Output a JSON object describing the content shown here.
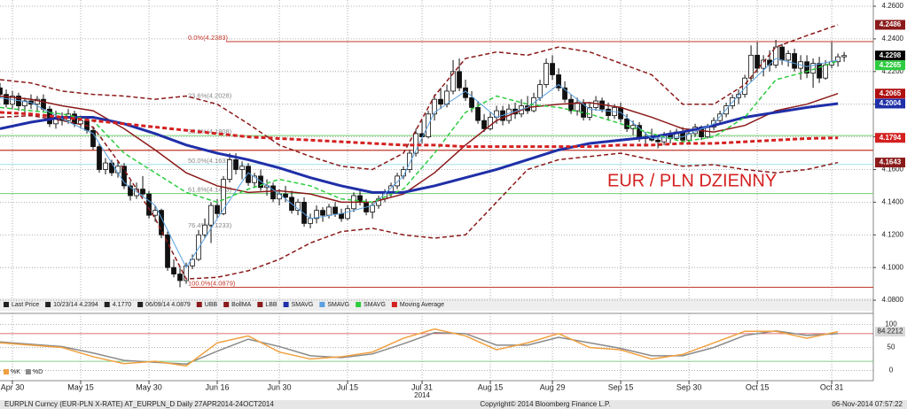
{
  "chart_data": {
    "type": "candlestick",
    "annotation": "EUR / PLN DZIENNY",
    "xlim": [
      0,
      140.7
    ],
    "xticks": [
      {
        "value": 2,
        "label": "Apr 30"
      },
      {
        "value": 13,
        "label": "May 15"
      },
      {
        "value": 24,
        "label": "May 30"
      },
      {
        "value": 35,
        "label": "Jun 16"
      },
      {
        "value": 45,
        "label": "Jun 30"
      },
      {
        "value": 56,
        "label": "Jul 15"
      },
      {
        "value": 68,
        "label": "Jul 31"
      },
      {
        "value": 79,
        "label": "Aug 15"
      },
      {
        "value": 89,
        "label": "Aug 29"
      },
      {
        "value": 100,
        "label": "Sep 15"
      },
      {
        "value": 111,
        "label": "Sep 30"
      },
      {
        "value": 122,
        "label": "Oct 15"
      },
      {
        "value": 134,
        "label": "Oct 31"
      }
    ],
    "year_label": "2014",
    "ylim": [
      4.0795,
      4.2638
    ],
    "yticks": [
      {
        "value": 4.26,
        "label": "4.2600"
      },
      {
        "value": 4.24,
        "label": "4.2400"
      },
      {
        "value": 4.22,
        "label": "4.2200"
      },
      {
        "value": 4.2,
        "label": "4.2000"
      },
      {
        "value": 4.18,
        "label": "4.1800"
      },
      {
        "value": 4.16,
        "label": "4.1600"
      },
      {
        "value": 4.14,
        "label": "4.1400"
      },
      {
        "value": 4.12,
        "label": "4.1200"
      },
      {
        "value": 4.1,
        "label": "4.1000"
      },
      {
        "value": 4.08,
        "label": "4.0800"
      }
    ],
    "grid": true,
    "candles": [
      [
        4.21,
        4.213,
        4.204,
        4.206
      ],
      [
        4.206,
        4.209,
        4.198,
        4.2
      ],
      [
        4.2,
        4.208,
        4.197,
        4.205
      ],
      [
        4.205,
        4.207,
        4.196,
        4.199
      ],
      [
        4.199,
        4.204,
        4.195,
        4.202
      ],
      [
        4.202,
        4.206,
        4.197,
        4.2
      ],
      [
        4.2,
        4.205,
        4.196,
        4.203
      ],
      [
        4.203,
        4.206,
        4.195,
        4.197
      ],
      [
        4.197,
        4.199,
        4.186,
        4.188
      ],
      [
        4.188,
        4.196,
        4.185,
        4.192
      ],
      [
        4.192,
        4.195,
        4.187,
        4.19
      ],
      [
        4.19,
        4.197,
        4.188,
        4.194
      ],
      [
        4.194,
        4.196,
        4.186,
        4.188
      ],
      [
        4.188,
        4.193,
        4.185,
        4.19
      ],
      [
        4.19,
        4.192,
        4.182,
        4.184
      ],
      [
        4.184,
        4.186,
        4.172,
        4.174
      ],
      [
        4.174,
        4.176,
        4.158,
        4.16
      ],
      [
        4.16,
        4.167,
        4.157,
        4.164
      ],
      [
        4.164,
        4.166,
        4.156,
        4.158
      ],
      [
        4.158,
        4.165,
        4.155,
        4.162
      ],
      [
        4.162,
        4.164,
        4.148,
        4.15
      ],
      [
        4.15,
        4.153,
        4.141,
        4.144
      ],
      [
        4.144,
        4.152,
        4.142,
        4.148
      ],
      [
        4.148,
        4.156,
        4.143,
        4.145
      ],
      [
        4.145,
        4.147,
        4.13,
        4.132
      ],
      [
        4.132,
        4.138,
        4.128,
        4.135
      ],
      [
        4.135,
        4.136,
        4.118,
        4.12
      ],
      [
        4.12,
        4.122,
        4.098,
        4.1
      ],
      [
        4.1,
        4.105,
        4.094,
        4.096
      ],
      [
        4.096,
        4.1,
        4.0879,
        4.092
      ],
      [
        4.092,
        4.103,
        4.09,
        4.101
      ],
      [
        4.101,
        4.108,
        4.099,
        4.105
      ],
      [
        4.105,
        4.123,
        4.104,
        4.12
      ],
      [
        4.12,
        4.13,
        4.118,
        4.126
      ],
      [
        4.126,
        4.14,
        4.115,
        4.138
      ],
      [
        4.138,
        4.142,
        4.13,
        4.133
      ],
      [
        4.133,
        4.156,
        4.132,
        4.154
      ],
      [
        4.154,
        4.17,
        4.152,
        4.166
      ],
      [
        4.166,
        4.17,
        4.157,
        4.16
      ],
      [
        4.16,
        4.165,
        4.154,
        4.162
      ],
      [
        4.162,
        4.164,
        4.15,
        4.152
      ],
      [
        4.152,
        4.158,
        4.149,
        4.156
      ],
      [
        4.156,
        4.16,
        4.147,
        4.149
      ],
      [
        4.149,
        4.154,
        4.144,
        4.15
      ],
      [
        4.15,
        4.152,
        4.14,
        4.142
      ],
      [
        4.142,
        4.148,
        4.138,
        4.145
      ],
      [
        4.145,
        4.15,
        4.14,
        4.143
      ],
      [
        4.143,
        4.147,
        4.133,
        4.135
      ],
      [
        4.135,
        4.142,
        4.132,
        4.14
      ],
      [
        4.14,
        4.143,
        4.125,
        4.127
      ],
      [
        4.127,
        4.133,
        4.124,
        4.13
      ],
      [
        4.13,
        4.138,
        4.127,
        4.135
      ],
      [
        4.135,
        4.137,
        4.128,
        4.132
      ],
      [
        4.132,
        4.139,
        4.13,
        4.137
      ],
      [
        4.137,
        4.14,
        4.131,
        4.133
      ],
      [
        4.133,
        4.136,
        4.128,
        4.13
      ],
      [
        4.13,
        4.138,
        4.129,
        4.136
      ],
      [
        4.136,
        4.146,
        4.134,
        4.144
      ],
      [
        4.144,
        4.147,
        4.138,
        4.14
      ],
      [
        4.14,
        4.142,
        4.132,
        4.134
      ],
      [
        4.134,
        4.14,
        4.13,
        4.138
      ],
      [
        4.138,
        4.144,
        4.136,
        4.142
      ],
      [
        4.142,
        4.148,
        4.14,
        4.146
      ],
      [
        4.146,
        4.152,
        4.143,
        4.15
      ],
      [
        4.15,
        4.158,
        4.148,
        4.156
      ],
      [
        4.156,
        4.162,
        4.154,
        4.16
      ],
      [
        4.16,
        4.172,
        4.158,
        4.17
      ],
      [
        4.17,
        4.185,
        4.168,
        4.182
      ],
      [
        4.182,
        4.19,
        4.176,
        4.18
      ],
      [
        4.18,
        4.196,
        4.179,
        4.194
      ],
      [
        4.194,
        4.206,
        4.19,
        4.203
      ],
      [
        4.203,
        4.21,
        4.197,
        4.2
      ],
      [
        4.2,
        4.212,
        4.198,
        4.208
      ],
      [
        4.208,
        4.227,
        4.206,
        4.22
      ],
      [
        4.22,
        4.228,
        4.208,
        4.21
      ],
      [
        4.21,
        4.215,
        4.202,
        4.204
      ],
      [
        4.204,
        4.208,
        4.195,
        4.198
      ],
      [
        4.198,
        4.202,
        4.188,
        4.19
      ],
      [
        4.19,
        4.194,
        4.183,
        4.185
      ],
      [
        4.185,
        4.195,
        4.184,
        4.192
      ],
      [
        4.192,
        4.199,
        4.188,
        4.196
      ],
      [
        4.196,
        4.199,
        4.187,
        4.19
      ],
      [
        4.19,
        4.2,
        4.188,
        4.197
      ],
      [
        4.197,
        4.201,
        4.191,
        4.194
      ],
      [
        4.194,
        4.203,
        4.192,
        4.199
      ],
      [
        4.199,
        4.205,
        4.194,
        4.196
      ],
      [
        4.196,
        4.207,
        4.195,
        4.204
      ],
      [
        4.204,
        4.215,
        4.202,
        4.212
      ],
      [
        4.212,
        4.228,
        4.21,
        4.225
      ],
      [
        4.225,
        4.23,
        4.215,
        4.218
      ],
      [
        4.218,
        4.222,
        4.208,
        4.21
      ],
      [
        4.21,
        4.214,
        4.201,
        4.203
      ],
      [
        4.203,
        4.206,
        4.194,
        4.196
      ],
      [
        4.196,
        4.204,
        4.193,
        4.201
      ],
      [
        4.201,
        4.203,
        4.19,
        4.192
      ],
      [
        4.192,
        4.201,
        4.19,
        4.198
      ],
      [
        4.198,
        4.205,
        4.196,
        4.202
      ],
      [
        4.202,
        4.204,
        4.195,
        4.197
      ],
      [
        4.197,
        4.201,
        4.19,
        4.193
      ],
      [
        4.193,
        4.2,
        4.191,
        4.198
      ],
      [
        4.198,
        4.201,
        4.189,
        4.191
      ],
      [
        4.191,
        4.194,
        4.183,
        4.185
      ],
      [
        4.185,
        4.19,
        4.181,
        4.187
      ],
      [
        4.187,
        4.189,
        4.177,
        4.179
      ],
      [
        4.179,
        4.183,
        4.174,
        4.18
      ],
      [
        4.18,
        4.185,
        4.177,
        4.178
      ],
      [
        4.178,
        4.181,
        4.173,
        4.177
      ],
      [
        4.177,
        4.183,
        4.175,
        4.181
      ],
      [
        4.181,
        4.184,
        4.176,
        4.179
      ],
      [
        4.179,
        4.185,
        4.178,
        4.183
      ],
      [
        4.183,
        4.186,
        4.176,
        4.178
      ],
      [
        4.178,
        4.184,
        4.176,
        4.182
      ],
      [
        4.182,
        4.188,
        4.18,
        4.186
      ],
      [
        4.186,
        4.187,
        4.178,
        4.18
      ],
      [
        4.18,
        4.188,
        4.179,
        4.186
      ],
      [
        4.186,
        4.192,
        4.184,
        4.19
      ],
      [
        4.19,
        4.196,
        4.188,
        4.194
      ],
      [
        4.194,
        4.201,
        4.192,
        4.199
      ],
      [
        4.199,
        4.206,
        4.197,
        4.204
      ],
      [
        4.204,
        4.209,
        4.2,
        4.206
      ],
      [
        4.206,
        4.218,
        4.204,
        4.216
      ],
      [
        4.216,
        4.236,
        4.214,
        4.23
      ],
      [
        4.23,
        4.238,
        4.219,
        4.222
      ],
      [
        4.222,
        4.23,
        4.217,
        4.227
      ],
      [
        4.227,
        4.233,
        4.22,
        4.224
      ],
      [
        4.224,
        4.2394,
        4.222,
        4.235
      ],
      [
        4.235,
        4.237,
        4.224,
        4.227
      ],
      [
        4.227,
        4.233,
        4.223,
        4.231
      ],
      [
        4.231,
        4.234,
        4.22,
        4.222
      ],
      [
        4.222,
        4.23,
        4.215,
        4.226
      ],
      [
        4.226,
        4.23,
        4.216,
        4.219
      ],
      [
        4.219,
        4.228,
        4.21,
        4.225
      ],
      [
        4.225,
        4.229,
        4.213,
        4.216
      ],
      [
        4.216,
        4.227,
        4.215,
        4.224
      ],
      [
        4.224,
        4.238,
        4.222,
        4.226
      ],
      [
        4.226,
        4.231,
        4.223,
        4.229
      ],
      [
        4.229,
        4.232,
        4.226,
        4.2298
      ]
    ],
    "x": [
      0,
      5,
      10,
      15,
      20,
      25,
      30,
      35,
      40,
      45,
      50,
      55,
      60,
      65,
      70,
      75,
      80,
      85,
      90,
      95,
      100,
      105,
      110,
      115,
      120,
      125,
      130,
      135
    ],
    "series": [
      {
        "name": "UBB",
        "color": "#8b1a1a",
        "dash": true,
        "values": [
          4.215,
          4.213,
          4.208,
          4.206,
          4.205,
          4.203,
          4.205,
          4.2,
          4.188,
          4.175,
          4.168,
          4.162,
          4.16,
          4.17,
          4.205,
          4.228,
          4.232,
          4.23,
          4.235,
          4.232,
          4.225,
          4.218,
          4.2,
          4.2,
          4.212,
          4.235,
          4.242,
          4.2486
        ]
      },
      {
        "name": "BollMA",
        "color": "#8b1a1a",
        "dash": false,
        "values": [
          4.205,
          4.203,
          4.199,
          4.196,
          4.185,
          4.172,
          4.158,
          4.15,
          4.146,
          4.147,
          4.145,
          4.14,
          4.14,
          4.145,
          4.158,
          4.175,
          4.19,
          4.198,
          4.2,
          4.201,
          4.198,
          4.192,
          4.185,
          4.183,
          4.187,
          4.196,
          4.2,
          4.2065
        ]
      },
      {
        "name": "LBB",
        "color": "#8b1a1a",
        "dash": true,
        "values": [
          4.192,
          4.193,
          4.19,
          4.186,
          4.16,
          4.13,
          4.093,
          4.094,
          4.098,
          4.105,
          4.115,
          4.122,
          4.124,
          4.12,
          4.118,
          4.12,
          4.14,
          4.16,
          4.166,
          4.168,
          4.17,
          4.166,
          4.162,
          4.163,
          4.16,
          4.158,
          4.16,
          4.1643
        ]
      },
      {
        "name": "SMAVG",
        "color": "#1f2fa8",
        "dash": false,
        "width": 3,
        "values": [
          4.185,
          4.189,
          4.192,
          4.192,
          4.188,
          4.182,
          4.175,
          4.17,
          4.166,
          4.161,
          4.155,
          4.15,
          4.146,
          4.146,
          4.15,
          4.155,
          4.16,
          4.166,
          4.172,
          4.176,
          4.178,
          4.18,
          4.183,
          4.187,
          4.192,
          4.195,
          4.198,
          4.2004
        ]
      },
      {
        "name": "SMAVG",
        "color": "#5aa0e0",
        "dash": false,
        "width": 1,
        "values": [
          4.204,
          4.201,
          4.191,
          4.182,
          4.152,
          4.138,
          4.1,
          4.13,
          4.158,
          4.145,
          4.13,
          4.133,
          4.138,
          4.156,
          4.195,
          4.208,
          4.192,
          4.198,
          4.212,
          4.197,
          4.195,
          4.179,
          4.18,
          4.188,
          4.21,
          4.228,
          4.223,
          4.227
        ]
      },
      {
        "name": "SMAVG",
        "color": "#2ecc40",
        "dash": true,
        "width": 1.5,
        "values": [
          4.198,
          4.196,
          4.194,
          4.19,
          4.17,
          4.158,
          4.146,
          4.14,
          4.148,
          4.154,
          4.15,
          4.142,
          4.14,
          4.148,
          4.17,
          4.195,
          4.205,
          4.2,
          4.198,
          4.194,
          4.188,
          4.182,
          4.177,
          4.18,
          4.192,
          4.215,
          4.22,
          4.2265
        ]
      },
      {
        "name": "Moving Average",
        "color": "#d42020",
        "dash": true,
        "width": 3,
        "values": [
          4.195,
          4.194,
          4.192,
          4.19,
          4.188,
          4.186,
          4.184,
          4.182,
          4.18,
          4.179,
          4.178,
          4.177,
          4.176,
          4.175,
          4.175,
          4.174,
          4.174,
          4.174,
          4.174,
          4.174,
          4.175,
          4.175,
          4.176,
          4.176,
          4.177,
          4.178,
          4.179,
          4.1794
        ]
      }
    ],
    "fib_levels": [
      {
        "label": "0.0%(4.2383)",
        "value": 4.2383,
        "color": "#c0392b"
      },
      {
        "label": "23.6%(4.2028)",
        "value": 4.2028,
        "color": null
      },
      {
        "label": "38.2%(4.1808)",
        "value": 4.1808,
        "color": "#6fcf6f"
      },
      {
        "label": "50.0%(4.1631)",
        "value": 4.1631,
        "color": "#9fe0e8"
      },
      {
        "label": "61.8%(4.1453)",
        "value": 4.1453,
        "color": "#6fcf6f"
      },
      {
        "label": "76.4%(4.1233)",
        "value": 4.1233,
        "color": null
      },
      {
        "label": "100.0%(4.0879)",
        "value": 4.0879,
        "color": "#c0392b"
      }
    ],
    "hline": {
      "value": 4.1718,
      "color": "#c0392b"
    },
    "price_tags": [
      {
        "value": 4.2486,
        "color": "#8b1a1a"
      },
      {
        "value": 4.2298,
        "color": "#000000"
      },
      {
        "value": 4.2265,
        "color": "#2ecc40"
      },
      {
        "value": 4.2065,
        "color": "#b01010"
      },
      {
        "value": 4.2004,
        "color": "#1f2fa8"
      },
      {
        "value": 4.1794,
        "color": "#d42020"
      },
      {
        "value": 4.1643,
        "color": "#8b1a1a"
      }
    ],
    "legend_info": [
      "Last Price",
      "10/23/14 4.2394",
      "4.1770",
      "06/09/14 4.0879"
    ],
    "indicator": {
      "ylim": [
        -18,
        118
      ],
      "yticks": [
        100,
        50,
        0
      ],
      "levels": [
        80,
        20
      ],
      "last": 84.2212,
      "series": [
        {
          "name": "%K",
          "color": "#f0a040",
          "values": [
            60,
            55,
            50,
            30,
            15,
            20,
            10,
            60,
            75,
            40,
            25,
            30,
            40,
            70,
            90,
            75,
            45,
            60,
            80,
            50,
            45,
            25,
            35,
            60,
            85,
            85,
            70,
            84.2212
          ]
        },
        {
          "name": "%D",
          "color": "#8a8a8a",
          "values": [
            62,
            57,
            52,
            38,
            22,
            18,
            14,
            42,
            68,
            52,
            32,
            28,
            36,
            58,
            82,
            80,
            55,
            55,
            72,
            60,
            48,
            32,
            32,
            50,
            76,
            86,
            76,
            80
          ]
        }
      ]
    },
    "footer": {
      "left": "EURPLN Curncy (EUR-PLN X-RATE) AT_EURPLN_D  Daily 27APR2014-24OCT2014",
      "center": "Copyright© 2014 Bloomberg Finance L.P.",
      "right": "06-Nov-2014 07:57:22"
    }
  }
}
